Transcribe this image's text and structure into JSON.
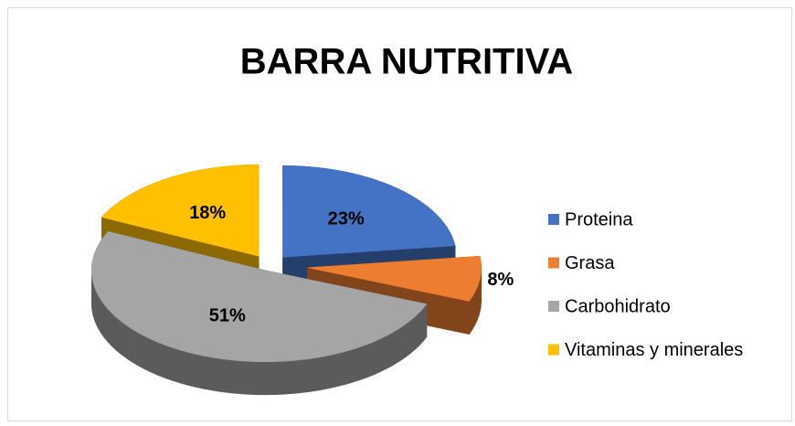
{
  "chart_data": {
    "type": "pie3d",
    "title": "BARRA NUTRITIVA",
    "categories": [
      "Proteina",
      "Grasa",
      "Carbohidrato",
      "Vitaminas y minerales"
    ],
    "values": [
      23,
      8,
      51,
      18
    ],
    "value_labels": [
      "23%",
      "8%",
      "51%",
      "18%"
    ],
    "colors": [
      "#4472c4",
      "#ed7d31",
      "#a5a5a5",
      "#ffc000"
    ],
    "legend": "right"
  }
}
